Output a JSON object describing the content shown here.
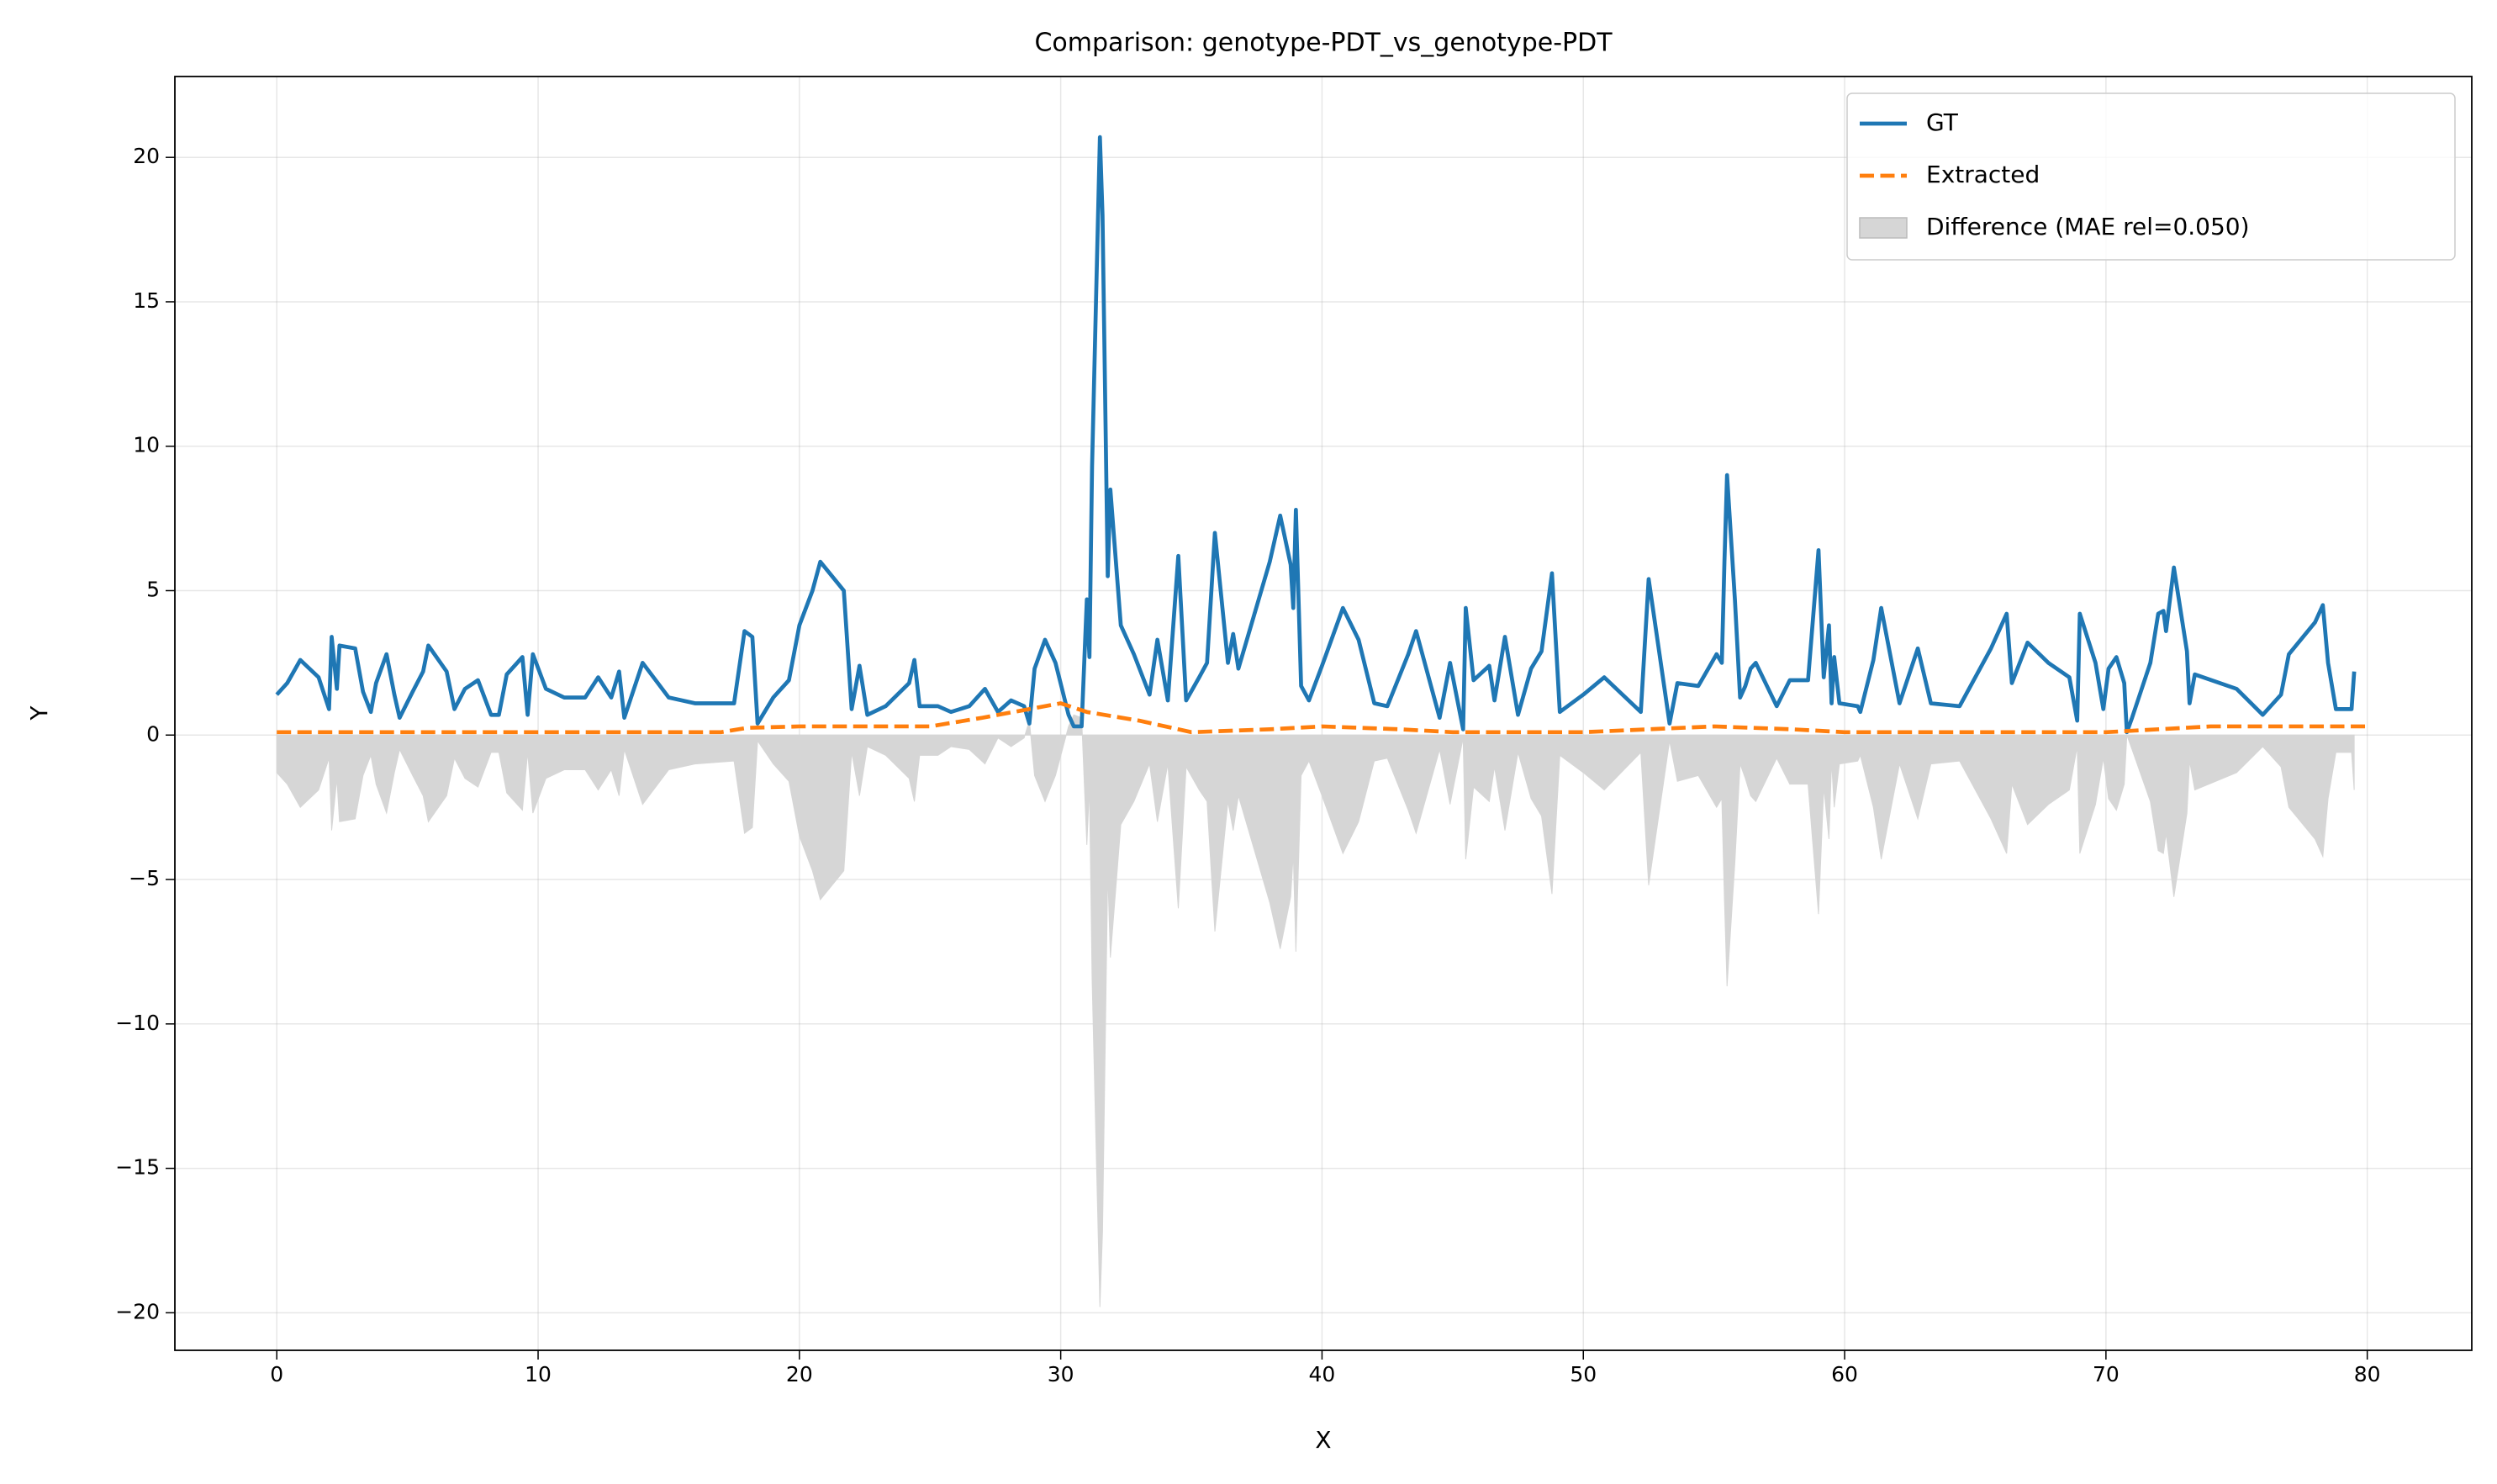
{
  "chart_data": {
    "type": "line",
    "title": "Comparison: genotype-PDT_vs_genotype-PDT",
    "x_label": "X",
    "y_label": "Y",
    "xlim": [
      -3.9,
      84
    ],
    "ylim": [
      -21.3,
      22.8
    ],
    "xticks": [
      0,
      10,
      20,
      30,
      40,
      50,
      60,
      70,
      80
    ],
    "yticks": [
      {
        "value": -20,
        "label": "−20"
      },
      {
        "value": -15,
        "label": "−15"
      },
      {
        "value": -10,
        "label": "−10"
      },
      {
        "value": -5,
        "label": "−5"
      },
      0,
      5,
      10,
      15,
      20
    ],
    "grid": true,
    "legend_position": "upper right",
    "series": [
      {
        "name": "GT",
        "color": "#1f77b4",
        "style": "solid",
        "x": [
          0,
          0.4,
          0.9,
          1.6,
          2.0,
          2.1,
          2.3,
          2.4,
          3.0,
          3.3,
          3.6,
          3.8,
          4.2,
          4.5,
          4.7,
          5.2,
          5.6,
          5.8,
          6.5,
          6.8,
          7.2,
          7.7,
          8.2,
          8.5,
          8.8,
          9.4,
          9.6,
          9.8,
          10.3,
          11,
          11.8,
          12.3,
          12.8,
          13.1,
          13.3,
          14,
          15,
          16,
          17.5,
          17.9,
          18.2,
          18.4,
          19,
          19.6,
          20,
          20.5,
          20.8,
          21.7,
          22.0,
          22.3,
          22.6,
          23.3,
          24.2,
          24.4,
          24.6,
          25.3,
          25.8,
          26.5,
          27.1,
          27.6,
          28.1,
          28.6,
          28.8,
          29,
          29.4,
          29.8,
          30.3,
          30.5,
          30.8,
          31.0,
          31.1,
          31.2,
          31.5,
          31.6,
          31.8,
          31.9,
          32.3,
          32.8,
          33.4,
          33.7,
          34.1,
          34.5,
          34.8,
          35.3,
          35.6,
          35.9,
          36.4,
          36.6,
          36.8,
          38.0,
          38.4,
          38.8,
          38.9,
          39.0,
          39.2,
          39.5,
          40.0,
          40.8,
          41.4,
          42.0,
          42.5,
          43.3,
          43.6,
          44.5,
          44.9,
          45.4,
          45.5,
          45.8,
          46.4,
          46.6,
          47,
          47.5,
          48.0,
          48.4,
          48.8,
          49.1,
          50,
          50.8,
          52.2,
          52.5,
          53.3,
          53.6,
          54.4,
          55.1,
          55.3,
          55.4,
          55.5,
          55.8,
          56.0,
          56.2,
          56.4,
          56.6,
          57.4,
          57.9,
          58.6,
          59.0,
          59.2,
          59.4,
          59.5,
          59.6,
          59.8,
          60.5,
          60.6,
          61.1,
          61.4,
          62.1,
          62.8,
          63.3,
          64.4,
          65.6,
          66.2,
          66.4,
          67.0,
          67.8,
          68.6,
          68.9,
          69.0,
          69.6,
          69.9,
          70.1,
          70.4,
          70.7,
          70.8,
          71.0,
          71.7,
          72.0,
          72.2,
          72.3,
          72.6,
          73.1,
          73.2,
          73.4,
          75,
          76,
          76.7,
          77.0,
          78.0,
          78.3,
          78.5,
          78.8,
          79.4,
          79.5
        ],
        "values": [
          1.4,
          1.8,
          2.6,
          2.0,
          0.9,
          3.4,
          1.6,
          3.1,
          3.0,
          1.5,
          0.8,
          1.8,
          2.8,
          1.4,
          0.6,
          1.5,
          2.2,
          3.1,
          2.2,
          0.9,
          1.6,
          1.9,
          0.7,
          0.7,
          2.1,
          2.7,
          0.7,
          2.8,
          1.6,
          1.3,
          1.3,
          2.0,
          1.3,
          2.2,
          0.6,
          2.5,
          1.3,
          1.1,
          1.1,
          3.6,
          3.4,
          0.4,
          1.3,
          1.9,
          3.8,
          5.0,
          6.0,
          5.0,
          0.9,
          2.4,
          0.7,
          1.0,
          1.8,
          2.6,
          1.0,
          1.0,
          0.8,
          1.0,
          1.6,
          0.8,
          1.2,
          1.0,
          0.4,
          2.3,
          3.3,
          2.5,
          0.7,
          0.3,
          0.3,
          4.7,
          2.7,
          9.3,
          20.7,
          18.0,
          5.5,
          8.5,
          3.8,
          2.8,
          1.4,
          3.3,
          1.2,
          6.2,
          1.2,
          2.0,
          2.5,
          7.0,
          2.5,
          3.5,
          2.3,
          6.0,
          7.6,
          5.9,
          4.4,
          7.8,
          1.7,
          1.2,
          2.4,
          4.4,
          3.3,
          1.1,
          1.0,
          2.8,
          3.6,
          0.6,
          2.5,
          0.2,
          4.4,
          1.9,
          2.4,
          1.2,
          3.4,
          0.7,
          2.3,
          2.9,
          5.6,
          0.8,
          1.4,
          2.0,
          0.8,
          5.4,
          0.4,
          1.8,
          1.7,
          2.8,
          2.5,
          6.0,
          9.0,
          4.7,
          1.3,
          1.7,
          2.3,
          2.5,
          1.0,
          1.9,
          1.9,
          6.4,
          2.0,
          3.8,
          1.1,
          2.7,
          1.1,
          1.0,
          0.8,
          2.6,
          4.4,
          1.1,
          3.0,
          1.1,
          1.0,
          3.0,
          4.2,
          1.8,
          3.2,
          2.5,
          2.0,
          0.5,
          4.2,
          2.5,
          0.9,
          2.3,
          2.7,
          1.8,
          0.1,
          0.6,
          2.5,
          4.2,
          4.3,
          3.6,
          5.8,
          2.9,
          1.1,
          2.1,
          1.6,
          0.7,
          1.4,
          2.8,
          3.9,
          4.5,
          2.5,
          0.9,
          0.9,
          2.2
        ]
      },
      {
        "name": "Extracted",
        "color": "#ff7f0e",
        "style": "dashed",
        "x": [
          0,
          17,
          18,
          20,
          25,
          27,
          30,
          31,
          33,
          35,
          38,
          40,
          43,
          45,
          50,
          55,
          58,
          60,
          70,
          74,
          80
        ],
        "values": [
          0.1,
          0.1,
          0.25,
          0.3,
          0.3,
          0.6,
          1.1,
          0.8,
          0.5,
          0.1,
          0.2,
          0.3,
          0.2,
          0.1,
          0.1,
          0.3,
          0.2,
          0.1,
          0.1,
          0.3,
          0.3
        ]
      },
      {
        "name": "Difference (MAE rel=0.050)",
        "color": "#d6d6d6",
        "style": "area",
        "values": [
          -1.3,
          -1.7,
          -2.5,
          -1.9,
          -0.8,
          -3.3,
          -1.5,
          -3.0,
          -2.9,
          -1.4,
          -0.7,
          -1.7,
          -2.7,
          -1.3,
          -0.5,
          -1.4,
          -2.1,
          -3.0,
          -2.1,
          -0.8,
          -1.5,
          -1.8,
          -0.6,
          -0.6,
          -2.0,
          -2.6,
          -0.6,
          -2.7,
          -1.5,
          -1.2,
          -1.2,
          -1.9,
          -1.2,
          -2.1,
          -0.5,
          -2.4,
          -1.2,
          -1.0,
          -0.9,
          -3.4,
          -3.2,
          -0.2,
          -1.0,
          -1.6,
          -3.5,
          -4.7,
          -5.7,
          -4.7,
          -0.6,
          -2.1,
          -0.4,
          -0.7,
          -1.5,
          -2.3,
          -0.7,
          -0.7,
          -0.4,
          -0.5,
          -1.0,
          -0.1,
          -0.4,
          -0.1,
          0.5,
          -1.4,
          -2.3,
          -1.4,
          0.3,
          0.7,
          0.6,
          -3.8,
          -1.8,
          -8.4,
          -19.8,
          -17.2,
          -4.7,
          -7.7,
          -3.1,
          -2.3,
          -1.0,
          -3.0,
          -1.0,
          -6.0,
          -1.1,
          -1.9,
          -2.3,
          -6.8,
          -2.3,
          -3.3,
          -2.1,
          -5.8,
          -7.4,
          -5.6,
          -4.1,
          -7.5,
          -1.4,
          -0.9,
          -2.1,
          -4.1,
          -3.0,
          -0.9,
          -0.8,
          -2.6,
          -3.4,
          -0.5,
          -2.4,
          -0.1,
          -4.3,
          -1.8,
          -2.3,
          -1.1,
          -3.3,
          -0.6,
          -2.2,
          -2.8,
          -5.5,
          -0.7,
          -1.3,
          -1.9,
          -0.6,
          -5.2,
          -0.2,
          -1.6,
          -1.4,
          -2.5,
          -2.2,
          -5.7,
          -8.7,
          -4.4,
          -1.0,
          -1.5,
          -2.1,
          -2.3,
          -0.8,
          -1.7,
          -1.7,
          -6.2,
          -1.8,
          -3.6,
          -0.9,
          -2.5,
          -1.0,
          -0.9,
          -0.7,
          -2.5,
          -4.3,
          -1.0,
          -2.9,
          -1.0,
          -0.9,
          -2.9,
          -4.1,
          -1.7,
          -3.1,
          -2.4,
          -1.9,
          -0.4,
          -4.1,
          -2.4,
          -0.8,
          -2.2,
          -2.6,
          -1.7,
          0,
          -0.5,
          -2.3,
          -4.0,
          -4.1,
          -3.4,
          -5.6,
          -2.7,
          -0.9,
          -1.9,
          -1.3,
          -0.4,
          -1.1,
          -2.5,
          -3.6,
          -4.2,
          -2.2,
          -0.6,
          -0.6,
          -1.9
        ]
      }
    ]
  }
}
